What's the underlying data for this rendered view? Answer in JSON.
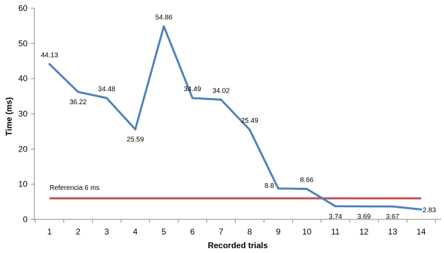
{
  "chart_data": {
    "type": "line",
    "xlabel": "Recorded trials",
    "ylabel": "Time (ms)",
    "x": [
      1,
      2,
      3,
      4,
      5,
      6,
      7,
      8,
      9,
      10,
      11,
      12,
      13,
      14
    ],
    "series": [
      {
        "values": [
          44.13,
          36.22,
          34.48,
          25.59,
          54.86,
          34.49,
          34.02,
          25.49,
          8.8,
          8.66,
          3.74,
          3.69,
          3.67,
          2.83
        ],
        "color": "#4F81BD",
        "labels": [
          "44.13",
          "36.22",
          "34.48",
          "25.59",
          "54.86",
          "34.49",
          "34.02",
          "25.49",
          "8.8",
          "8.66",
          "3.74",
          "3.69",
          "3.67",
          "2.83"
        ]
      }
    ],
    "reference": {
      "label": "Referencia 6 ms",
      "value": 6,
      "color": "#C0504D"
    },
    "ylim": [
      0,
      60
    ],
    "yticks": [
      0,
      10,
      20,
      30,
      40,
      50,
      60
    ],
    "xticks": [
      "1",
      "2",
      "3",
      "4",
      "5",
      "6",
      "7",
      "8",
      "9",
      "10",
      "11",
      "12",
      "13",
      "14"
    ],
    "grid": false,
    "legend": "none"
  }
}
